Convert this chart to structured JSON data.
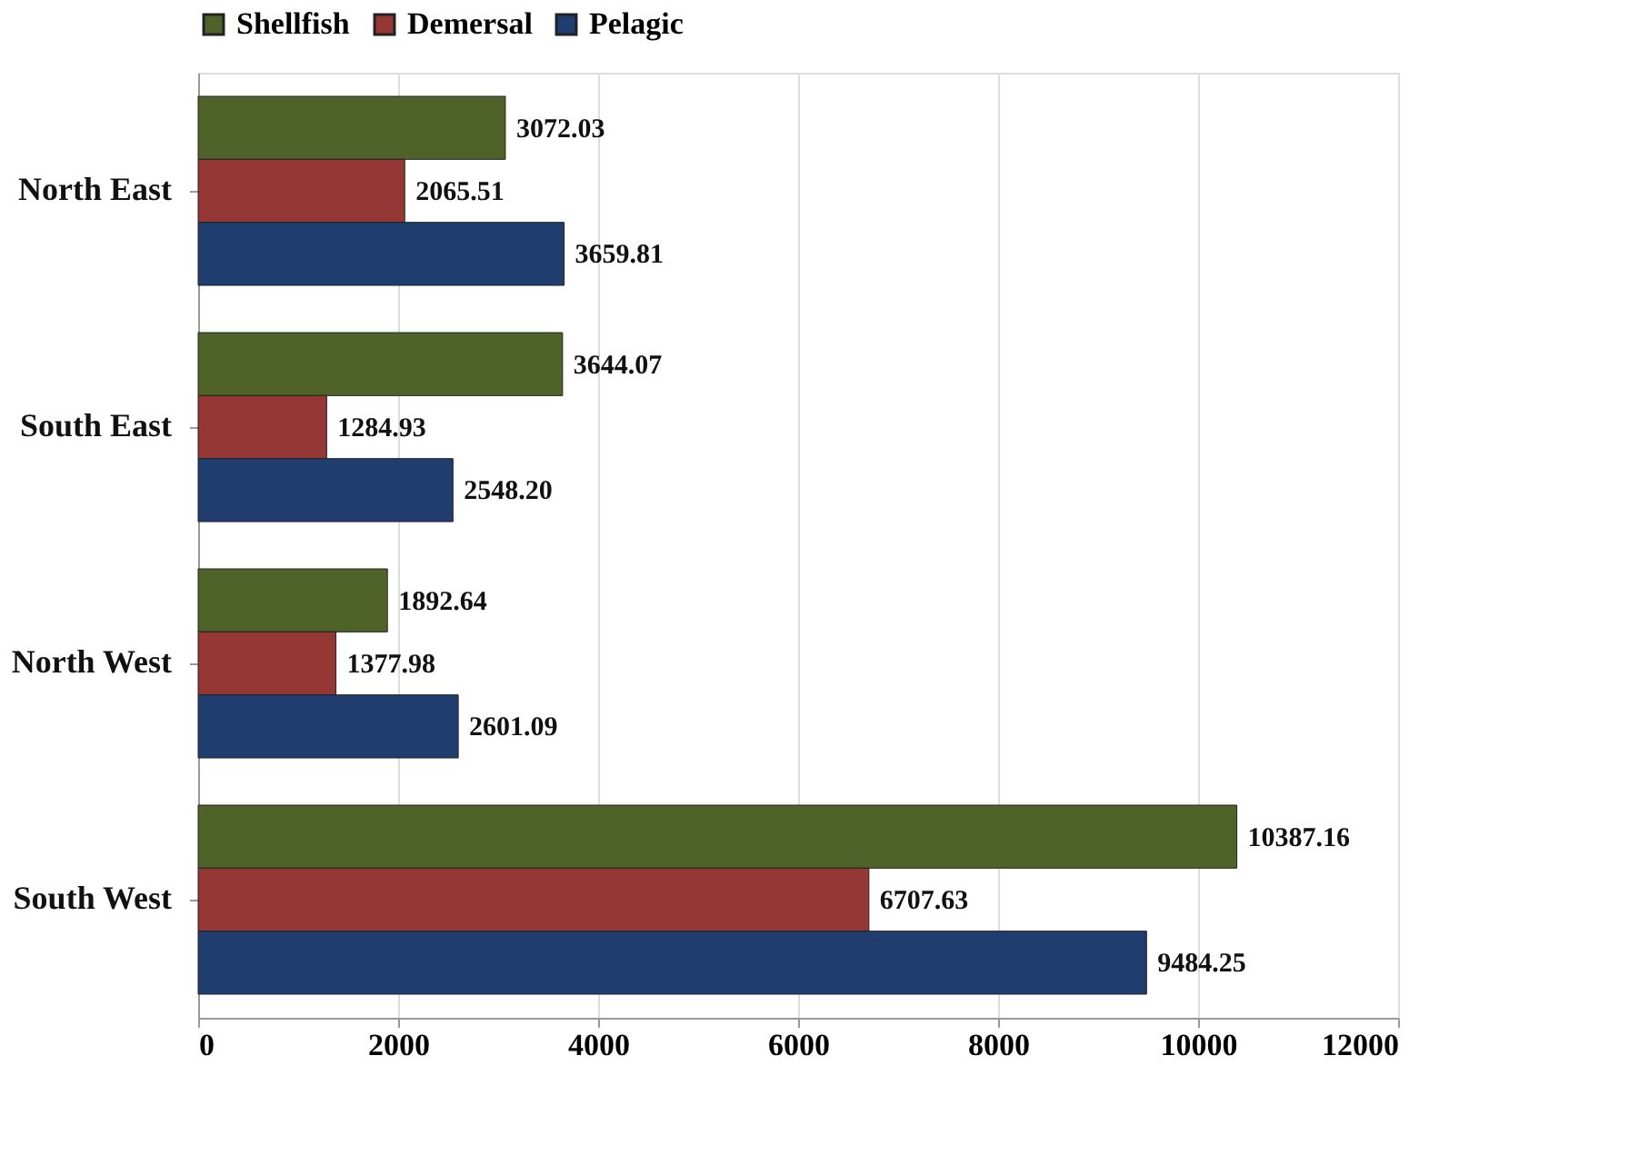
{
  "chart_data": {
    "type": "bar",
    "orientation": "horizontal",
    "categories": [
      "North East",
      "South East",
      "North West",
      "South West"
    ],
    "series": [
      {
        "name": "Shellfish",
        "color": "#4f6228",
        "values": [
          3072.03,
          3644.07,
          1892.64,
          10387.16
        ],
        "value_labels": [
          "3072.03",
          "3644.07",
          "1892.64",
          "10387.16"
        ]
      },
      {
        "name": "Demersal",
        "color": "#953735",
        "values": [
          2065.51,
          1284.93,
          1377.98,
          6707.63
        ],
        "value_labels": [
          "2065.51",
          "1284.93",
          "1377.98",
          "6707.63"
        ]
      },
      {
        "name": "Pelagic",
        "color": "#1f3d6e",
        "values": [
          3659.81,
          2548.2,
          2601.09,
          9484.25
        ],
        "value_labels": [
          "3659.81",
          "2548.20",
          "2601.09",
          "9484.25"
        ]
      }
    ],
    "xlim": [
      0,
      12000
    ],
    "xticks": [
      0,
      2000,
      4000,
      6000,
      8000,
      10000,
      12000
    ],
    "grid": "x",
    "legend": "top"
  }
}
